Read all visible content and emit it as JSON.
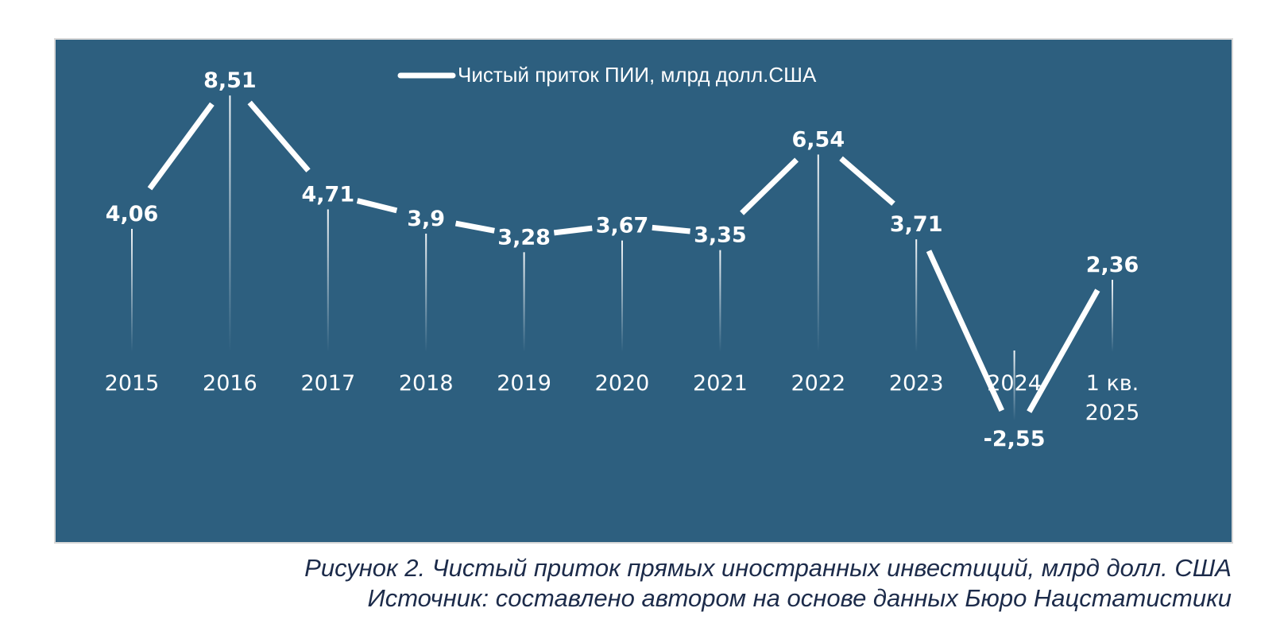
{
  "colors": {
    "panel_bg": "#2d5f7f",
    "line": "#ffffff",
    "caption": "#1c2b4a"
  },
  "chart_data": {
    "type": "line",
    "legend": {
      "label": "Чистый приток ПИИ, млрд долл.США",
      "position": "top-center"
    },
    "categories": [
      {
        "line1": "2015",
        "line2": ""
      },
      {
        "line1": "2016",
        "line2": ""
      },
      {
        "line1": "2017",
        "line2": ""
      },
      {
        "line1": "2018",
        "line2": ""
      },
      {
        "line1": "2019",
        "line2": ""
      },
      {
        "line1": "2020",
        "line2": ""
      },
      {
        "line1": "2021",
        "line2": ""
      },
      {
        "line1": "2022",
        "line2": ""
      },
      {
        "line1": "2023",
        "line2": ""
      },
      {
        "line1": "2024",
        "line2": ""
      },
      {
        "line1": "1 кв.",
        "line2": "2025"
      }
    ],
    "series": [
      {
        "name": "Чистый приток ПИИ, млрд долл.США",
        "values": [
          4.06,
          8.51,
          4.71,
          3.9,
          3.28,
          3.67,
          3.35,
          6.54,
          3.71,
          -2.55,
          2.36
        ],
        "labels": [
          "4,06",
          "8,51",
          "4,71",
          "3,9",
          "3,28",
          "3,67",
          "3,35",
          "6,54",
          "3,71",
          "-2,55",
          "2,36"
        ]
      }
    ],
    "ylim": [
      -3,
      9
    ],
    "grid": false,
    "xlabel": "",
    "ylabel": ""
  },
  "caption": {
    "title": "Рисунок 2. Чистый приток прямых иностранных инвестиций, млрд долл. США",
    "source": "Источник: составлено автором на основе данных Бюро Нацстатистики"
  }
}
